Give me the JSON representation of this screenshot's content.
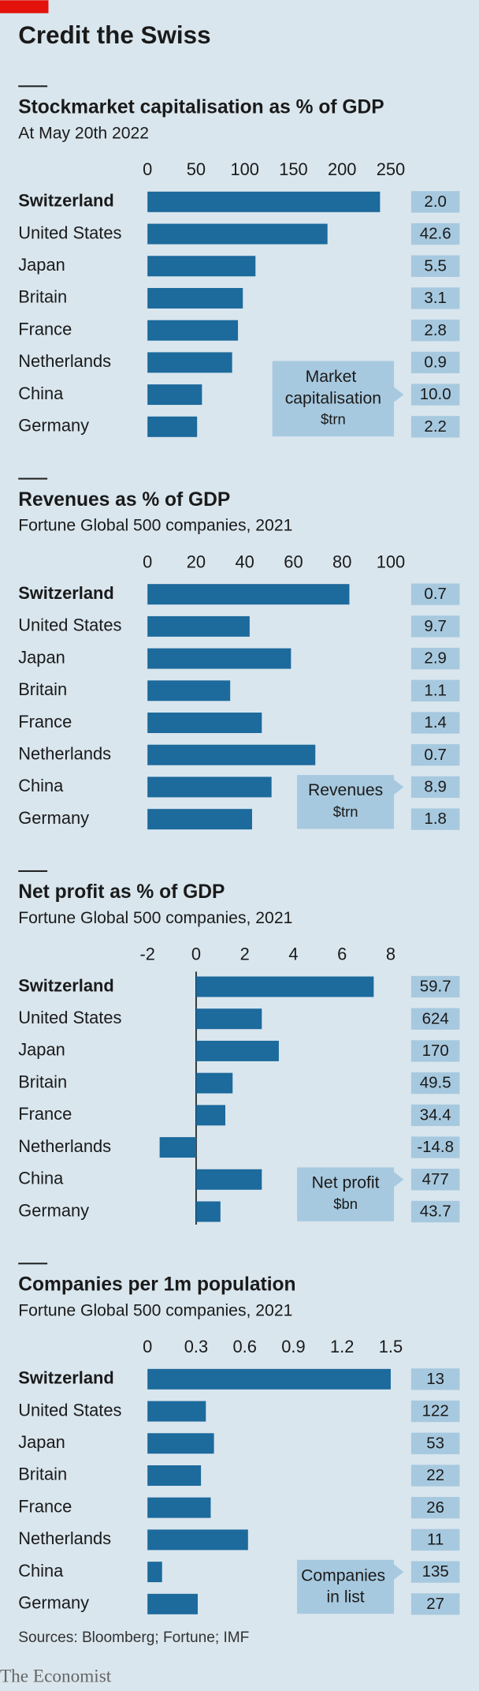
{
  "header": {
    "title": "Credit the Swiss"
  },
  "chart_data": [
    {
      "type": "bar",
      "title": "Stockmarket capitalisation as % of GDP",
      "subtitle": "At May 20th 2022",
      "categories": [
        "Switzerland",
        "United States",
        "Japan",
        "Britain",
        "France",
        "Netherlands",
        "China",
        "Germany"
      ],
      "values": [
        239,
        185,
        111,
        98,
        93,
        87,
        56,
        51
      ],
      "color": "#1d6a9c",
      "xlim": [
        0,
        250
      ],
      "xticks": [
        0,
        50,
        100,
        150,
        200,
        250
      ],
      "side": {
        "title": "Market capitalisation",
        "unit": "$trn",
        "values": [
          2.0,
          42.6,
          5.5,
          3.1,
          2.8,
          0.9,
          10.0,
          2.2
        ],
        "value_labels": [
          "2.0",
          "42.6",
          "5.5",
          "3.1",
          "2.8",
          "0.9",
          "10.0",
          "2.2"
        ]
      }
    },
    {
      "type": "bar",
      "title": "Revenues as % of GDP",
      "subtitle": "Fortune Global 500 companies, 2021",
      "categories": [
        "Switzerland",
        "United States",
        "Japan",
        "Britain",
        "France",
        "Netherlands",
        "China",
        "Germany"
      ],
      "values": [
        83,
        42,
        59,
        34,
        47,
        69,
        51,
        43
      ],
      "color": "#1d6a9c",
      "xlim": [
        0,
        100
      ],
      "xticks": [
        0,
        20,
        40,
        60,
        80,
        100
      ],
      "side": {
        "title": "Revenues",
        "unit": "$trn",
        "values": [
          0.7,
          9.7,
          2.9,
          1.1,
          1.4,
          0.7,
          8.9,
          1.8
        ]
      }
    },
    {
      "type": "bar",
      "title": "Net profit as % of GDP",
      "subtitle": "Fortune Global 500 companies, 2021",
      "categories": [
        "Switzerland",
        "United States",
        "Japan",
        "Britain",
        "France",
        "Netherlands",
        "China",
        "Germany"
      ],
      "values": [
        7.3,
        2.7,
        3.4,
        1.5,
        1.2,
        -1.5,
        2.7,
        1.0
      ],
      "color": "#1d6a9c",
      "xlim": [
        -2,
        8
      ],
      "xticks": [
        -2,
        0,
        2,
        4,
        6,
        8
      ],
      "side": {
        "title": "Net profit",
        "unit": "$bn",
        "values": [
          59.7,
          624,
          170,
          49.5,
          34.4,
          -14.8,
          477,
          43.7
        ]
      }
    },
    {
      "type": "bar",
      "title": "Companies per 1m population",
      "subtitle": "Fortune Global 500 companies, 2021",
      "categories": [
        "Switzerland",
        "United States",
        "Japan",
        "Britain",
        "France",
        "Netherlands",
        "China",
        "Germany"
      ],
      "values": [
        1.5,
        0.36,
        0.41,
        0.33,
        0.39,
        0.62,
        0.09,
        0.31
      ],
      "color": "#1d6a9c",
      "xlim": [
        0,
        1.5
      ],
      "xticks": [
        0,
        0.3,
        0.6,
        0.9,
        1.2,
        1.5
      ],
      "side": {
        "title": "Companies in list",
        "unit": "",
        "values": [
          13,
          122,
          53,
          22,
          26,
          11,
          135,
          27
        ]
      }
    }
  ],
  "footer": {
    "source": "Sources: Bloomberg; Fortune; IMF",
    "brand": "The Economist"
  }
}
